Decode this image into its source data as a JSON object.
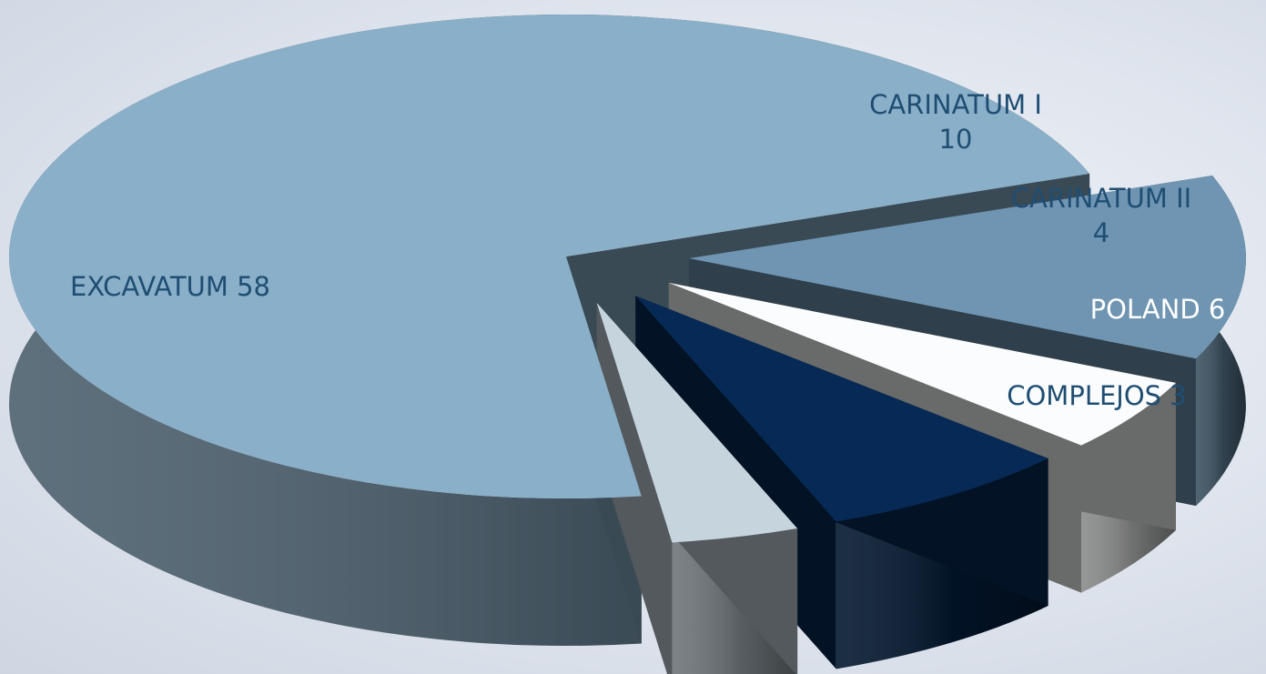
{
  "chart_data": {
    "type": "pie",
    "style": "3d-exploded",
    "slices": [
      {
        "label": "EXCAVATUM 58",
        "value": 58,
        "color": "#8aafc8",
        "label_color": "#1f4e73",
        "label_lines": [
          "EXCAVATUM 58"
        ]
      },
      {
        "label": "CARINATUM I 10",
        "value": 10,
        "color": "#6f95b2",
        "label_color": "#1f4e73",
        "label_lines": [
          "CARINATUM I",
          "10"
        ]
      },
      {
        "label": "CARINATUM II 4",
        "value": 4,
        "color": "#fbfcfd",
        "label_color": "#1f4e73",
        "label_lines": [
          "CARINATUM II",
          "4"
        ]
      },
      {
        "label": "POLAND 6",
        "value": 6,
        "color": "#062a55",
        "label_color": "#ffffff",
        "label_lines": [
          "POLAND 6"
        ]
      },
      {
        "label": "COMPLEJOS 3",
        "value": 3,
        "color": "#c6d4de",
        "label_color": "#1f4e73",
        "label_lines": [
          "COMPLEJOS 3"
        ]
      }
    ]
  }
}
